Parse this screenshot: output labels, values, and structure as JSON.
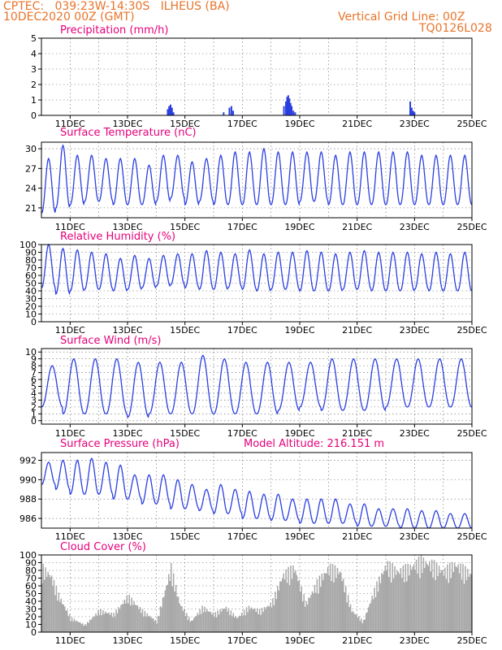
{
  "header": {
    "line1": "CPTEC:   039:23W-14:30S   ILHEUS (BA)",
    "line2": "10DEC2020 00Z (GMT)",
    "right1": "Vertical Grid Line: 00Z",
    "right2": "TQ0126L028"
  },
  "colors": {
    "header": "#e8742a",
    "title": "#e6007a",
    "series": "#2b3fe0",
    "cloud": "#a8a8a8"
  },
  "chart_data": [
    {
      "type": "bar",
      "title": "Precipitation (mm/h)",
      "x_labels": [
        "11DEC",
        "13DEC",
        "15DEC",
        "17DEC",
        "19DEC",
        "21DEC",
        "23DEC",
        "25DEC"
      ],
      "x_range": [
        10.0,
        25.0
      ],
      "ylim": [
        0,
        5
      ],
      "yticks": [
        0,
        1,
        2,
        3,
        4,
        5
      ],
      "points": [
        [
          14.4,
          0.4
        ],
        [
          14.45,
          0.6
        ],
        [
          14.5,
          0.7
        ],
        [
          14.55,
          0.5
        ],
        [
          14.6,
          0.2
        ],
        [
          16.35,
          0.2
        ],
        [
          16.55,
          0.5
        ],
        [
          16.62,
          0.6
        ],
        [
          16.68,
          0.3
        ],
        [
          18.45,
          0.6
        ],
        [
          18.52,
          0.9
        ],
        [
          18.56,
          1.2
        ],
        [
          18.6,
          1.3
        ],
        [
          18.64,
          1.1
        ],
        [
          18.68,
          0.8
        ],
        [
          18.72,
          0.6
        ],
        [
          18.78,
          0.3
        ],
        [
          18.84,
          0.2
        ],
        [
          22.85,
          0.9
        ],
        [
          22.9,
          0.5
        ],
        [
          22.95,
          0.3
        ],
        [
          23.0,
          0.2
        ]
      ]
    },
    {
      "type": "line",
      "title": "Surface Temperature (nC)",
      "x_labels": [
        "11DEC",
        "13DEC",
        "15DEC",
        "17DEC",
        "19DEC",
        "21DEC",
        "23DEC",
        "25DEC"
      ],
      "x_range": [
        10.0,
        25.0
      ],
      "ylim": [
        19.5,
        31
      ],
      "yticks": [
        21,
        24,
        27,
        30
      ],
      "peaks": [
        28.5,
        30.5,
        29,
        29,
        28.5,
        28.5,
        28.5,
        27.5,
        29,
        29,
        28,
        28.5,
        29,
        29.5,
        29.5,
        30,
        29.5,
        29.5,
        29.5,
        29.5,
        29,
        29.5,
        29.5,
        29.5,
        29.5,
        29.5,
        29,
        29,
        29,
        29
      ],
      "troughs": [
        20.2,
        21.0,
        21.5,
        22,
        22,
        21.5,
        21.5,
        21.5,
        22,
        22.5,
        21.5,
        22,
        21.5,
        21.5,
        21.5,
        21.5,
        21.5,
        21.5,
        22,
        22,
        21.5,
        21.5,
        21.5,
        21.5,
        21.5,
        21.5,
        21.5,
        21.5,
        21.5,
        21.5
      ]
    },
    {
      "type": "line",
      "title": "Relative Humidity (%)",
      "x_labels": [
        "11DEC",
        "13DEC",
        "15DEC",
        "17DEC",
        "19DEC",
        "21DEC",
        "23DEC",
        "25DEC"
      ],
      "x_range": [
        10.0,
        25.0
      ],
      "ylim": [
        0,
        100
      ],
      "yticks": [
        0,
        10,
        20,
        30,
        40,
        50,
        60,
        70,
        80,
        90,
        100
      ],
      "peaks": [
        100,
        95,
        93,
        90,
        88,
        82,
        86,
        82,
        86,
        88,
        88,
        92,
        90,
        88,
        93,
        88,
        90,
        90,
        92,
        90,
        88,
        90,
        92,
        90,
        90,
        90,
        88,
        90,
        88,
        90
      ],
      "troughs": [
        44,
        36,
        40,
        42,
        42,
        40,
        42,
        44,
        46,
        48,
        44,
        42,
        42,
        44,
        42,
        40,
        42,
        42,
        40,
        40,
        40,
        42,
        42,
        40,
        40,
        40,
        42,
        40,
        40,
        40
      ]
    },
    {
      "type": "line",
      "title": "Surface Wind (m/s)",
      "x_labels": [
        "11DEC",
        "13DEC",
        "15DEC",
        "17DEC",
        "19DEC",
        "21DEC",
        "23DEC",
        "25DEC"
      ],
      "x_range": [
        10.0,
        25.0
      ],
      "ylim": [
        -0.5,
        10.5
      ],
      "yticks": [
        0,
        1,
        2,
        3,
        4,
        5,
        6,
        7,
        8,
        9,
        10
      ],
      "peaks": [
        8,
        9,
        9,
        9,
        8.5,
        8.5,
        8.5,
        9.5,
        9,
        8.5,
        8.5,
        8.5,
        8.5,
        9,
        9,
        9,
        9,
        9,
        9,
        9
      ],
      "troughs": [
        2,
        1,
        1,
        1,
        0.5,
        1,
        1,
        1,
        1,
        1,
        1,
        1.5,
        2,
        1.5,
        1.5,
        1.5,
        2,
        2,
        2,
        2
      ]
    },
    {
      "type": "line",
      "title": "Surface Pressure (hPa)",
      "annotation": "Model Altitude: 216.151  m",
      "x_labels": [
        "11DEC",
        "13DEC",
        "15DEC",
        "17DEC",
        "19DEC",
        "21DEC",
        "23DEC",
        "25DEC"
      ],
      "x_range": [
        10.0,
        25.0
      ],
      "ylim": [
        985,
        992.8
      ],
      "yticks": [
        986,
        988,
        990,
        992
      ],
      "peaks": [
        991.8,
        992,
        992,
        992.2,
        991.8,
        991.5,
        990.5,
        990.5,
        990.5,
        990,
        989.5,
        989,
        989.5,
        989,
        988.8,
        988.5,
        988.5,
        988,
        988,
        988,
        988,
        987.5,
        987.5,
        987,
        987,
        987,
        986.8,
        986.8,
        986.5,
        986.5
      ],
      "troughs": [
        989.5,
        989,
        988.5,
        988.5,
        988.5,
        988,
        988,
        987.5,
        987.5,
        987,
        987,
        986.8,
        986.5,
        986.5,
        986,
        986,
        985.8,
        985.8,
        985.5,
        985.5,
        985.5,
        985.5,
        985.2,
        985.2,
        985.2,
        985,
        985,
        985,
        985,
        985
      ]
    },
    {
      "type": "bar",
      "title": "Cloud Cover (%)",
      "x_labels": [
        "11DEC",
        "13DEC",
        "15DEC",
        "17DEC",
        "19DEC",
        "21DEC",
        "23DEC",
        "25DEC"
      ],
      "x_range": [
        10.0,
        25.0
      ],
      "ylim": [
        0,
        100
      ],
      "yticks": [
        0,
        10,
        20,
        30,
        40,
        50,
        60,
        70,
        80,
        90,
        100
      ],
      "envelope": [
        [
          10.0,
          90
        ],
        [
          10.3,
          80
        ],
        [
          10.6,
          50
        ],
        [
          11.0,
          20
        ],
        [
          11.5,
          10
        ],
        [
          12.0,
          30
        ],
        [
          12.5,
          25
        ],
        [
          13.0,
          50
        ],
        [
          13.5,
          30
        ],
        [
          14.0,
          15
        ],
        [
          14.5,
          90
        ],
        [
          14.8,
          40
        ],
        [
          15.2,
          15
        ],
        [
          15.6,
          35
        ],
        [
          16.0,
          25
        ],
        [
          16.4,
          35
        ],
        [
          16.8,
          20
        ],
        [
          17.2,
          35
        ],
        [
          17.6,
          30
        ],
        [
          18.0,
          40
        ],
        [
          18.4,
          80
        ],
        [
          18.8,
          90
        ],
        [
          19.2,
          40
        ],
        [
          19.6,
          70
        ],
        [
          20.0,
          90
        ],
        [
          20.4,
          85
        ],
        [
          20.8,
          30
        ],
        [
          21.2,
          15
        ],
        [
          21.6,
          60
        ],
        [
          22.0,
          95
        ],
        [
          22.4,
          85
        ],
        [
          22.8,
          90
        ],
        [
          23.2,
          100
        ],
        [
          23.6,
          95
        ],
        [
          24.0,
          85
        ],
        [
          24.4,
          95
        ],
        [
          24.8,
          85
        ],
        [
          25.0,
          80
        ]
      ]
    }
  ]
}
